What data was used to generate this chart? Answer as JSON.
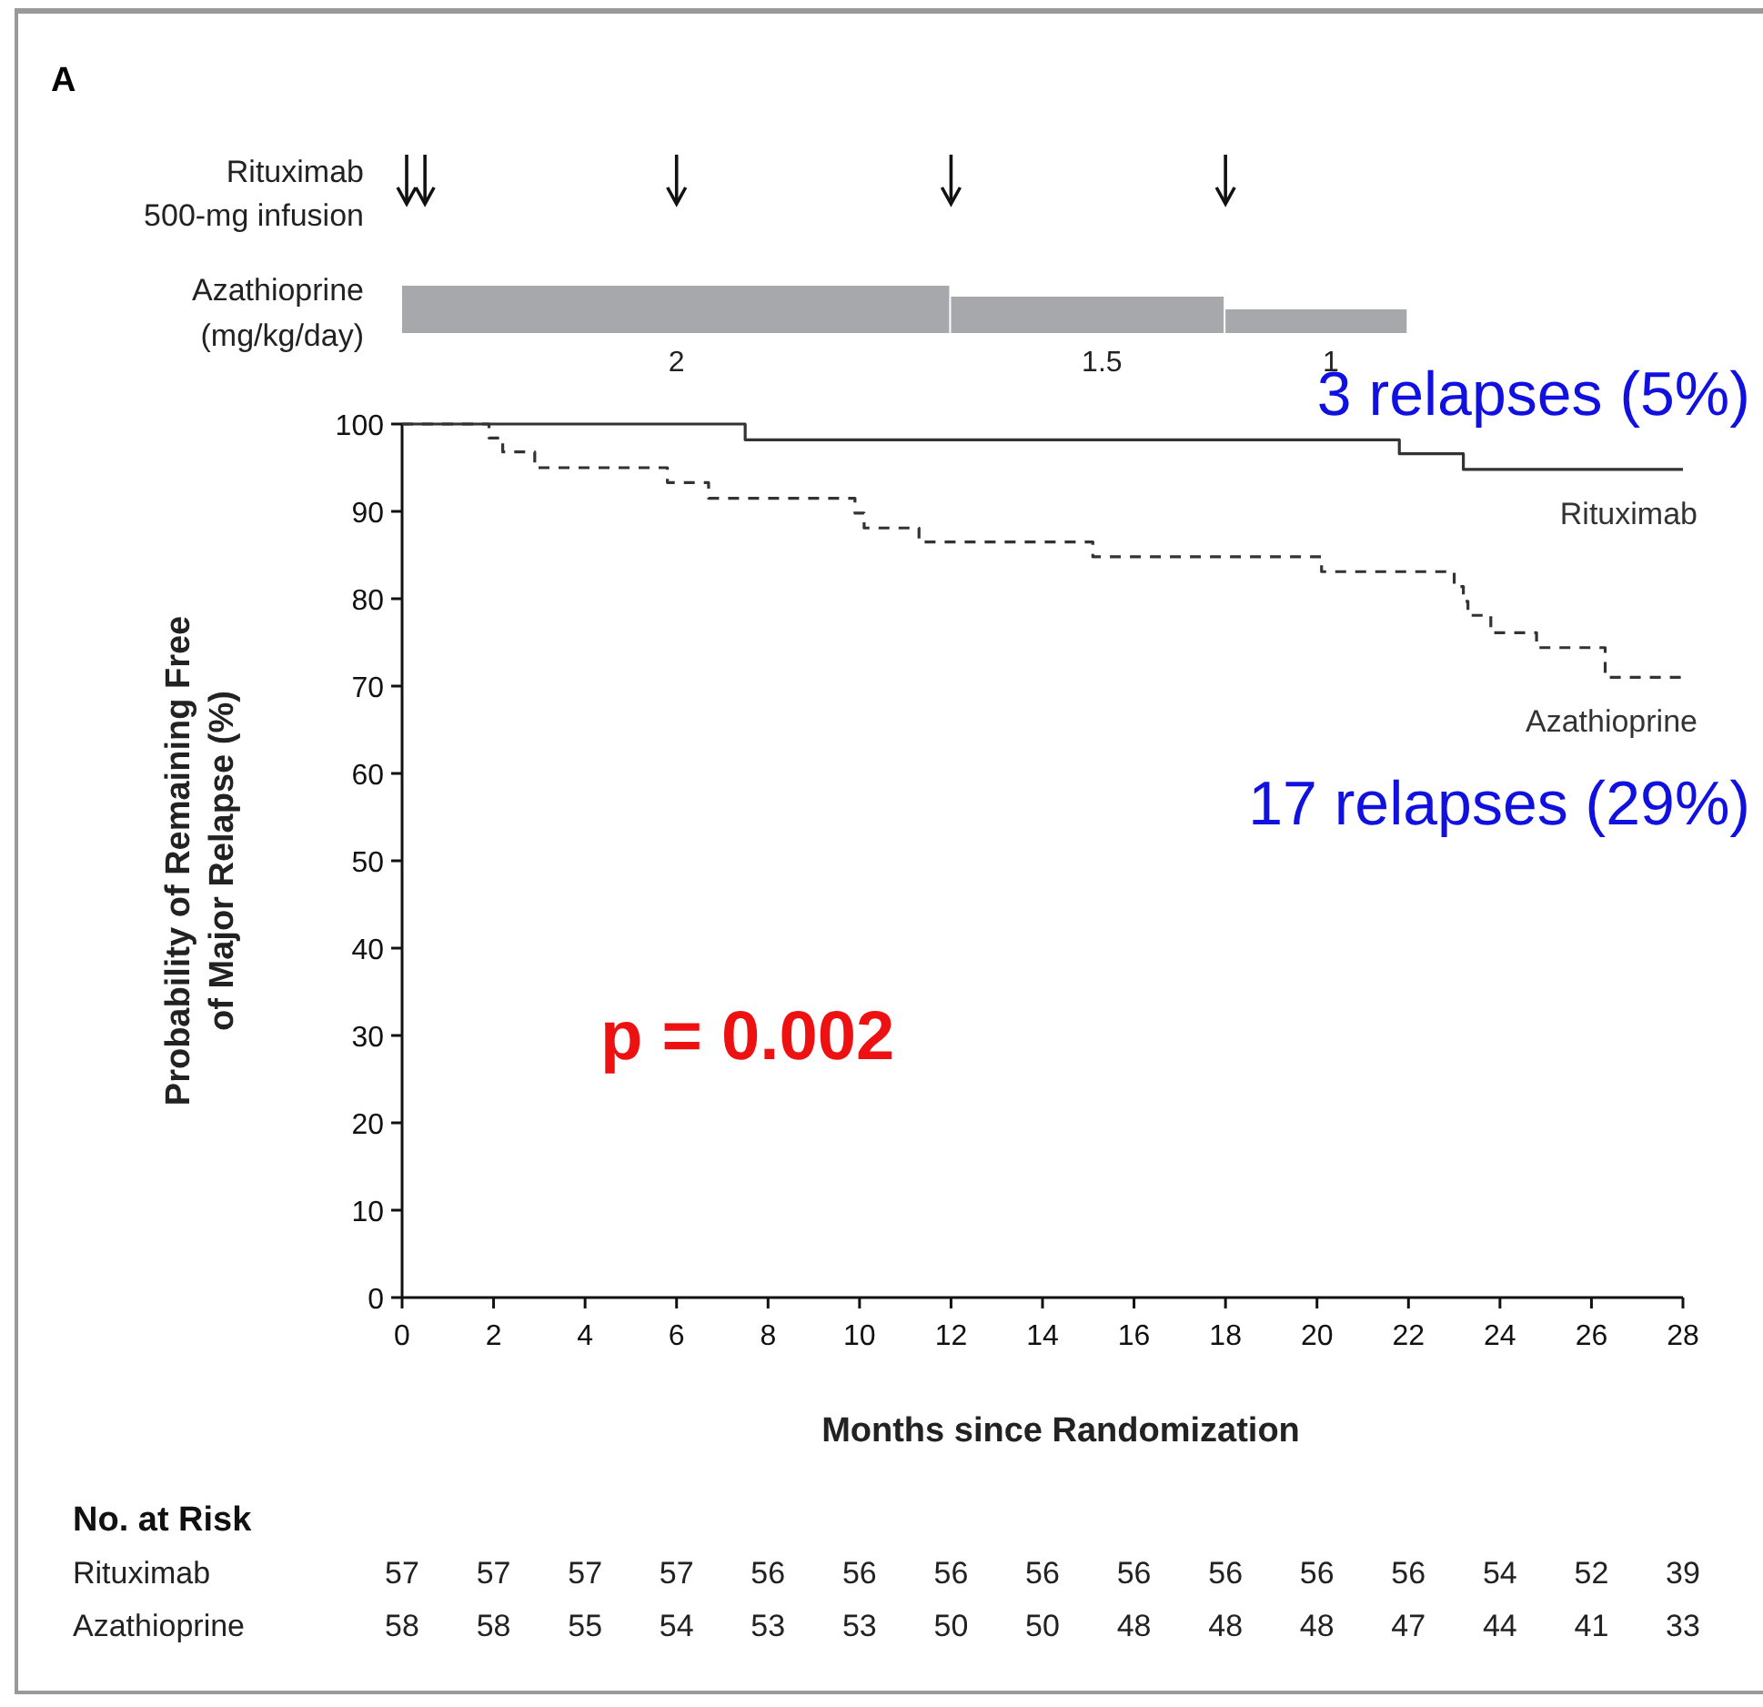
{
  "chart_data": {
    "type": "step",
    "xlabel": "Months since Randomization",
    "ylabel": "Probability of Remaining Free of Major Relapse (%)",
    "xlim": [
      0,
      28
    ],
    "xticks": [
      0,
      2,
      4,
      6,
      8,
      10,
      12,
      14,
      16,
      18,
      20,
      22,
      24,
      26,
      28
    ],
    "ylim": [
      0,
      100
    ],
    "yticks": [
      0,
      10,
      20,
      30,
      40,
      50,
      60,
      70,
      80,
      90,
      100
    ],
    "series": [
      {
        "name": "Rituximab",
        "color": "#333333",
        "line_style": "solid",
        "x": [
          0,
          7.5,
          21.8,
          23.2,
          28
        ],
        "values": [
          100,
          98.2,
          96.6,
          94.8,
          94.8
        ]
      },
      {
        "name": "Azathioprine",
        "color": "#333333",
        "line_style": "dashed",
        "x": [
          0,
          1.9,
          2.2,
          2.9,
          5.8,
          6.7,
          9.9,
          10.1,
          11.3,
          15.1,
          20.1,
          23.0,
          23.2,
          23.3,
          23.8,
          24.8,
          26.3,
          28
        ],
        "values": [
          100,
          98.4,
          96.8,
          95,
          93.3,
          91.5,
          89.8,
          88.1,
          86.5,
          84.8,
          83.1,
          81.4,
          79.7,
          78.1,
          76.1,
          74.4,
          71,
          71
        ]
      }
    ],
    "annotations": [
      "A",
      "Rituximab",
      "500-mg infusion",
      "Azathioprine",
      "(mg/kg/day)",
      "2",
      "1.5",
      "1",
      "3 relapses (5%)",
      "17 relapses (29%)",
      "p = 0.002",
      "No. at Risk",
      "Rituximab",
      "57 57 57 57 56 56 56 56 56 56 56 56 54 52 39",
      "Azathioprine",
      "58 58 55 54 53 53 50 50 48 48 48 47 44 41 33"
    ]
  }
}
